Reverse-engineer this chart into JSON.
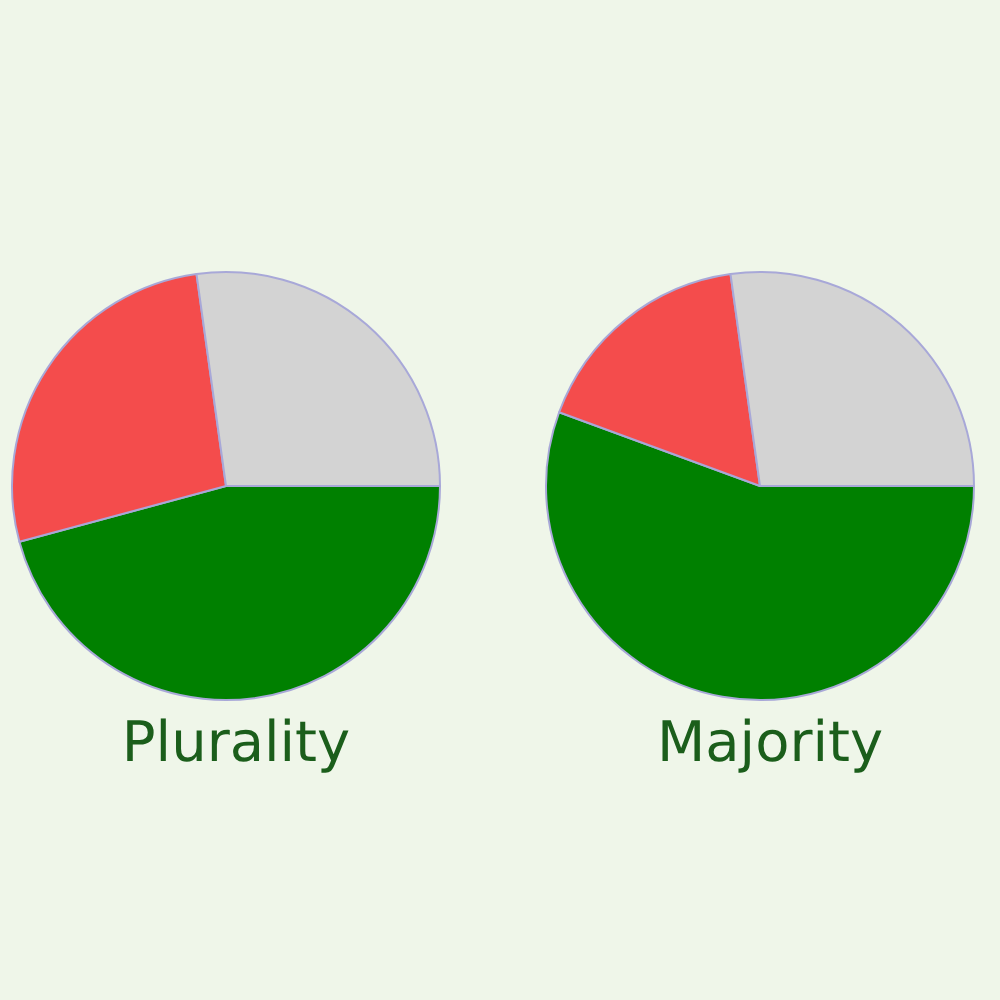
{
  "chart_data": [
    {
      "type": "pie",
      "title": "Plurality",
      "categories": [
        null,
        null,
        null
      ],
      "values": [
        45.8,
        27,
        27.2
      ],
      "colors": [
        "#008000",
        "#f44c4c",
        "#d3d3d3"
      ]
    },
    {
      "type": "pie",
      "title": "Majority",
      "categories": [
        null,
        null,
        null
      ],
      "values": [
        55.6,
        17.2,
        27.2
      ],
      "colors": [
        "#008000",
        "#f44c4c",
        "#d3d3d3"
      ]
    }
  ]
}
